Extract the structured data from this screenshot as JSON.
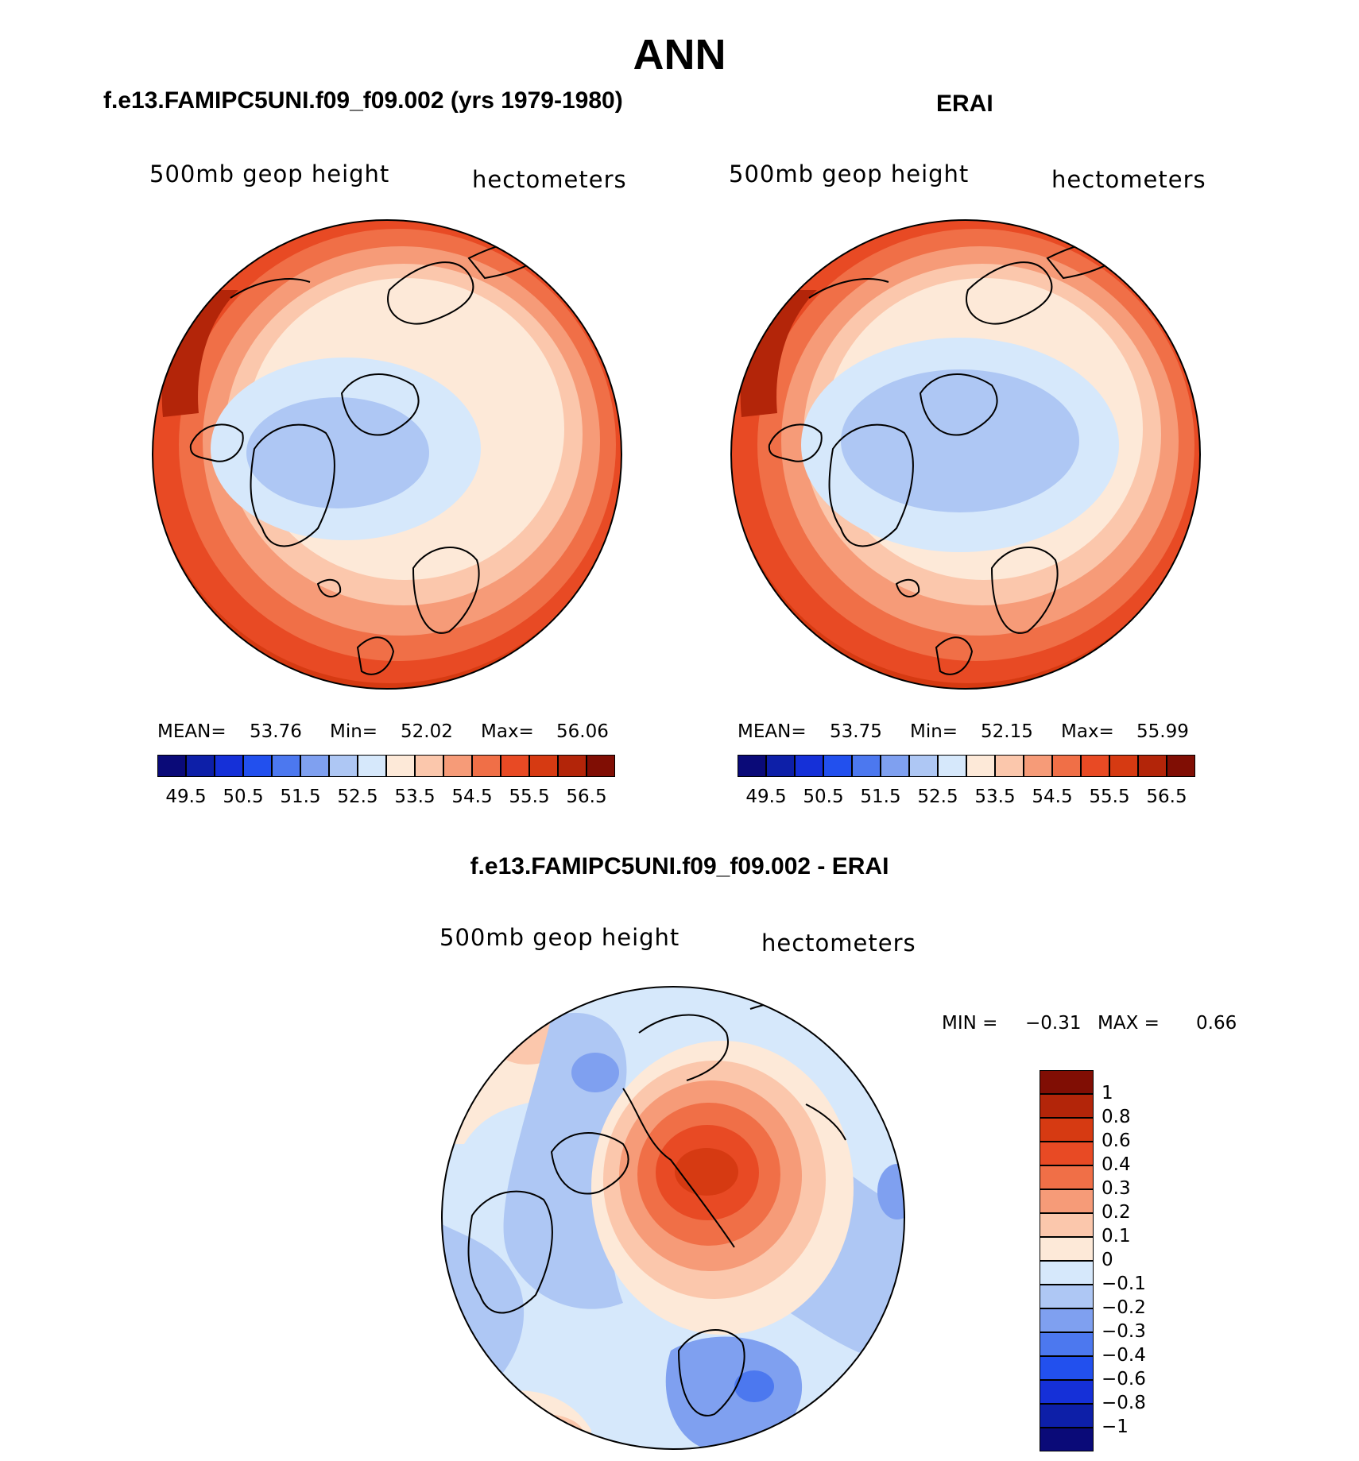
{
  "title": "ANN",
  "colors": {
    "seq": [
      "#0a0a78",
      "#0d1fa8",
      "#1530d8",
      "#2250ee",
      "#4c78ef",
      "#7fa0f0",
      "#aec7f4",
      "#d6e8fb",
      "#fde9d8",
      "#fbc7ac",
      "#f69b78",
      "#f06f47",
      "#e84a24",
      "#d63a12",
      "#b32509",
      "#800e04"
    ],
    "diff": [
      "#0a0a78",
      "#0d1fa8",
      "#1530d8",
      "#2250ee",
      "#4c78ef",
      "#7fa0f0",
      "#aec7f4",
      "#d6e8fb",
      "#fde9d8",
      "#fbc7ac",
      "#f69b78",
      "#f06f47",
      "#e84a24",
      "#d63a12",
      "#b32509",
      "#800e04"
    ]
  },
  "panels": [
    {
      "id": "model",
      "title": "f.e13.FAMIPC5UNI.f09_f09.002 (yrs 1979-1980)",
      "variable": "500mb geop height",
      "units": "hectometers",
      "stats": {
        "mean_label": "MEAN=",
        "mean": "53.76",
        "min_label": "Min=",
        "min": "52.02",
        "max_label": "Max=",
        "max": "56.06"
      },
      "colorbar_ticks": [
        "49.5",
        "50.5",
        "51.5",
        "52.5",
        "53.5",
        "54.5",
        "55.5",
        "56.5"
      ]
    },
    {
      "id": "obs",
      "title": "ERAI",
      "variable": "500mb geop height",
      "units": "hectometers",
      "stats": {
        "mean_label": "MEAN=",
        "mean": "53.75",
        "min_label": "Min=",
        "min": "52.15",
        "max_label": "Max=",
        "max": "55.99"
      },
      "colorbar_ticks": [
        "49.5",
        "50.5",
        "51.5",
        "52.5",
        "53.5",
        "54.5",
        "55.5",
        "56.5"
      ]
    }
  ],
  "diff_panel": {
    "title": "f.e13.FAMIPC5UNI.f09_f09.002 - ERAI",
    "variable": "500mb geop height",
    "units": "hectometers",
    "minmax": {
      "min_label": "MIN =",
      "min": "−0.31",
      "max_label": "MAX =",
      "max": "0.66"
    },
    "colorbar_labels": [
      "1",
      "0.8",
      "0.6",
      "0.4",
      "0.3",
      "0.2",
      "0.1",
      "0",
      "−0.1",
      "−0.2",
      "−0.3",
      "−0.4",
      "−0.6",
      "−0.8",
      "−1"
    ]
  }
}
